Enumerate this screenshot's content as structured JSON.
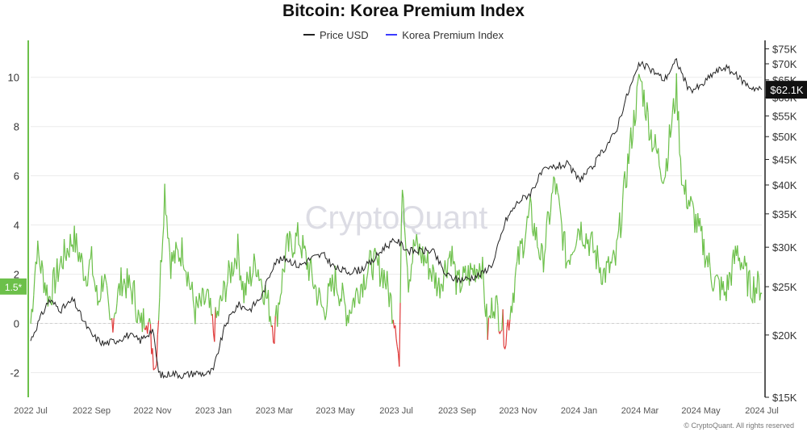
{
  "chart_data": {
    "type": "line",
    "title": "Bitcoin: Korea Premium Index",
    "watermark": "CryptoQuant",
    "copyright": "© CryptoQuant. All rights reserved",
    "legend_placement": "top-center",
    "grid": "horizontal",
    "x_ticks": [
      "2022 Jul",
      "2022 Sep",
      "2022 Nov",
      "2023 Jan",
      "2023 Mar",
      "2023 May",
      "2023 Jul",
      "2023 Sep",
      "2023 Nov",
      "2024 Jan",
      "2024 Mar",
      "2024 May",
      "2024 Jul"
    ],
    "left_axis": {
      "ylim": [
        -3,
        11.5
      ],
      "ticks": [
        -2,
        0,
        2,
        4,
        6,
        8,
        10
      ],
      "current_label": "1.5*",
      "current_value": 1.5
    },
    "right_axis": {
      "scale": "log",
      "ylim": [
        15000,
        78000
      ],
      "ticks": [
        {
          "value": 15000,
          "label": "$15K"
        },
        {
          "value": 20000,
          "label": "$20K"
        },
        {
          "value": 25000,
          "label": "$25K"
        },
        {
          "value": 30000,
          "label": "$30K"
        },
        {
          "value": 35000,
          "label": "$35K"
        },
        {
          "value": 40000,
          "label": "$40K"
        },
        {
          "value": 45000,
          "label": "$45K"
        },
        {
          "value": 50000,
          "label": "$50K"
        },
        {
          "value": 55000,
          "label": "$55K"
        },
        {
          "value": 60000,
          "label": "$60K"
        },
        {
          "value": 65000,
          "label": "$65K"
        },
        {
          "value": 70000,
          "label": "$70K"
        },
        {
          "value": 75000,
          "label": "$75K"
        }
      ],
      "current_label": "$62.1K",
      "current_value": 62100
    },
    "colors": {
      "price": "#222222",
      "premium_positive": "#6cc04a",
      "premium_negative": "#e03b3b",
      "premium_legend": "#3b3bff",
      "left_axis": "#6cc04a"
    },
    "series": [
      {
        "name": "Price USD",
        "axis": "right",
        "x": [
          0,
          0.15,
          0.3,
          0.5,
          0.7,
          0.85,
          1.0,
          1.2,
          1.4,
          1.6,
          1.8,
          2.0,
          2.1,
          2.2,
          2.3,
          2.5,
          2.7,
          2.9,
          3.0,
          3.2,
          3.4,
          3.6,
          3.8,
          4.0,
          4.2,
          4.4,
          4.6,
          4.8,
          5.0,
          5.2,
          5.4,
          5.6,
          5.8,
          6.0,
          6.2,
          6.4,
          6.6,
          6.8,
          7.0,
          7.2,
          7.4,
          7.6,
          7.8,
          8.0,
          8.2,
          8.4,
          8.6,
          8.8,
          9.0,
          9.2,
          9.4,
          9.6,
          9.8,
          10.0,
          10.2,
          10.4,
          10.6,
          10.8,
          11.0,
          11.2,
          11.4,
          11.6,
          11.8,
          12.0
        ],
        "y": [
          19500,
          21500,
          23500,
          22500,
          23500,
          21500,
          20000,
          19200,
          19500,
          20000,
          19500,
          20500,
          16800,
          16500,
          16800,
          16600,
          16800,
          16700,
          17000,
          21000,
          23000,
          22500,
          24000,
          28000,
          28500,
          27500,
          28500,
          29000,
          27200,
          26800,
          27000,
          28000,
          30000,
          31000,
          29500,
          29500,
          29500,
          26500,
          25800,
          26000,
          26500,
          28000,
          34000,
          37000,
          38500,
          42500,
          43500,
          44000,
          41000,
          43000,
          47000,
          51000,
          61000,
          70000,
          68000,
          65000,
          71000,
          62000,
          63000,
          67000,
          69000,
          66000,
          63000,
          62100
        ]
      },
      {
        "name": "Korea Premium Index",
        "axis": "left",
        "x": [
          0,
          0.1,
          0.3,
          0.5,
          0.7,
          0.9,
          1.0,
          1.1,
          1.2,
          1.3,
          1.5,
          1.7,
          1.8,
          1.9,
          2.0,
          2.05,
          2.1,
          2.2,
          2.3,
          2.5,
          2.7,
          2.9,
          3.0,
          3.2,
          3.4,
          3.5,
          3.7,
          3.9,
          4.0,
          4.2,
          4.4,
          4.6,
          4.8,
          5.0,
          5.2,
          5.4,
          5.6,
          5.8,
          6.0,
          6.05,
          6.1,
          6.2,
          6.3,
          6.5,
          6.7,
          6.9,
          7.0,
          7.2,
          7.4,
          7.5,
          7.6,
          7.8,
          8.0,
          8.2,
          8.4,
          8.6,
          8.8,
          9.0,
          9.2,
          9.4,
          9.6,
          9.8,
          10.0,
          10.2,
          10.4,
          10.6,
          10.7,
          10.8,
          11.0,
          11.2,
          11.4,
          11.6,
          11.8,
          12.0
        ],
        "y": [
          0,
          3.0,
          1.0,
          2.5,
          3.5,
          2.0,
          2.5,
          0.8,
          2.0,
          -0.2,
          1.8,
          1.2,
          -0.2,
          0.5,
          -1.0,
          -1.8,
          0.5,
          5.5,
          2.5,
          3.0,
          0.5,
          1.0,
          -0.3,
          1.5,
          3.0,
          1.2,
          2.5,
          0.8,
          -0.3,
          3.0,
          3.5,
          2.0,
          0.5,
          1.8,
          0.4,
          1.5,
          2.5,
          2.0,
          0,
          -1.8,
          6.0,
          1.8,
          3.2,
          2.5,
          1.5,
          3.0,
          1.5,
          2.0,
          2.5,
          -0.3,
          1.0,
          -0.5,
          2.5,
          4.5,
          2.5,
          5.8,
          2.5,
          4.0,
          3.2,
          2.0,
          2.5,
          6.5,
          10.0,
          7.5,
          6.0,
          9.5,
          5.5,
          5.0,
          3.5,
          1.8,
          1.2,
          3.0,
          1.5,
          1.5
        ]
      }
    ]
  }
}
